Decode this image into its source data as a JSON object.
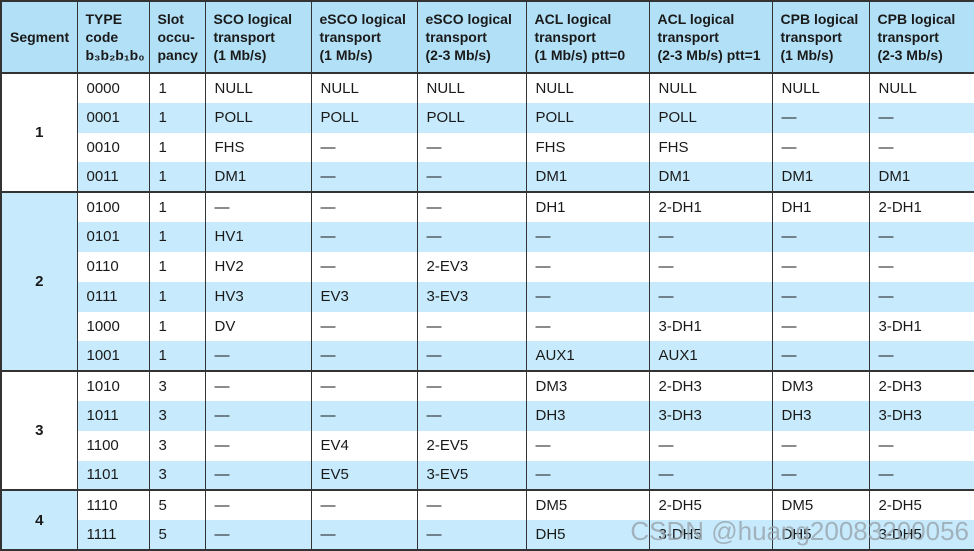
{
  "watermark": "CSDN @huang20083200056",
  "colors": {
    "header_bg": "#b2e0f6",
    "stripe_bg": "#c7ebfd",
    "border": "#333333",
    "watermark": "#9aa5ad"
  },
  "table": {
    "columns": [
      "Segment",
      "TYPE\ncode\nb₃b₂b₁b₀",
      "Slot\noccu-\npancy",
      "SCO logical\ntransport\n(1 Mb/s)",
      "eSCO logical\ntransport\n(1 Mb/s)",
      "eSCO logical\ntransport\n(2-3 Mb/s)",
      "ACL logical\ntransport\n(1 Mb/s) ptt=0",
      "ACL logical\ntransport\n(2-3 Mb/s) ptt=1",
      "CPB logical\ntransport\n(1 Mb/s)",
      "CPB logical\ntransport\n(2-3 Mb/s)"
    ],
    "segments": [
      {
        "label": "1",
        "rows": [
          [
            "0000",
            "1",
            "NULL",
            "NULL",
            "NULL",
            "NULL",
            "NULL",
            "NULL",
            "NULL"
          ],
          [
            "0001",
            "1",
            "POLL",
            "POLL",
            "POLL",
            "POLL",
            "POLL",
            "—",
            "—"
          ],
          [
            "0010",
            "1",
            "FHS",
            "—",
            "—",
            "FHS",
            "FHS",
            "—",
            "—"
          ],
          [
            "0011",
            "1",
            "DM1",
            "—",
            "—",
            "DM1",
            "DM1",
            "DM1",
            "DM1"
          ]
        ]
      },
      {
        "label": "2",
        "rows": [
          [
            "0100",
            "1",
            "—",
            "—",
            "—",
            "DH1",
            "2-DH1",
            "DH1",
            "2-DH1"
          ],
          [
            "0101",
            "1",
            "HV1",
            "—",
            "—",
            "—",
            "—",
            "—",
            "—"
          ],
          [
            "0110",
            "1",
            "HV2",
            "—",
            "2-EV3",
            "—",
            "—",
            "—",
            "—"
          ],
          [
            "0111",
            "1",
            "HV3",
            "EV3",
            "3-EV3",
            "—",
            "—",
            "—",
            "—"
          ],
          [
            "1000",
            "1",
            "DV",
            "—",
            "—",
            "—",
            "3-DH1",
            "—",
            "3-DH1"
          ],
          [
            "1001",
            "1",
            "—",
            "—",
            "—",
            "AUX1",
            "AUX1",
            "—",
            "—"
          ]
        ]
      },
      {
        "label": "3",
        "rows": [
          [
            "1010",
            "3",
            "—",
            "—",
            "—",
            "DM3",
            "2-DH3",
            "DM3",
            "2-DH3"
          ],
          [
            "1011",
            "3",
            "—",
            "—",
            "—",
            "DH3",
            "3-DH3",
            "DH3",
            "3-DH3"
          ],
          [
            "1100",
            "3",
            "—",
            "EV4",
            "2-EV5",
            "—",
            "—",
            "—",
            "—"
          ],
          [
            "1101",
            "3",
            "—",
            "EV5",
            "3-EV5",
            "—",
            "—",
            "—",
            "—"
          ]
        ]
      },
      {
        "label": "4",
        "rows": [
          [
            "1110",
            "5",
            "—",
            "—",
            "—",
            "DM5",
            "2-DH5",
            "DM5",
            "2-DH5"
          ],
          [
            "1111",
            "5",
            "—",
            "—",
            "—",
            "DH5",
            "3-DH5",
            "DH5",
            "3-DH5"
          ]
        ]
      }
    ]
  }
}
